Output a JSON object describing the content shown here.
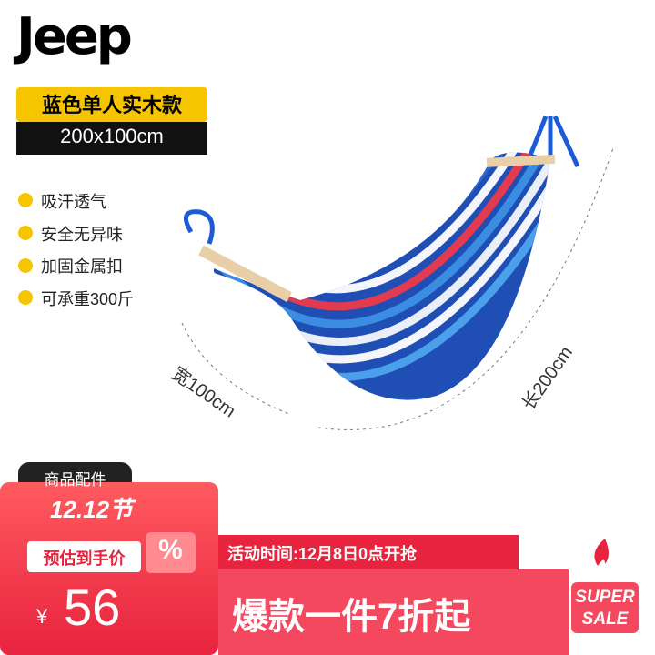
{
  "brand": "Jeep",
  "badge": {
    "model": "蓝色单人实木款",
    "size": "200x100cm"
  },
  "features": [
    "吸汗透气",
    "安全无异味",
    "加固金属扣",
    "可承重300斤"
  ],
  "dimensions": {
    "width": "宽100cm",
    "length": "长200cm"
  },
  "accessories_tab": "商品配件",
  "promo": {
    "festival": "12.12节",
    "price_label": "预估到手价",
    "percent_icon": "%",
    "currency": "¥",
    "price": "56",
    "event_time": "活动时间:12月8日0点开抢",
    "headline": "爆款一件7折起",
    "sale_badge": [
      "SUPER",
      "SALE"
    ]
  }
}
